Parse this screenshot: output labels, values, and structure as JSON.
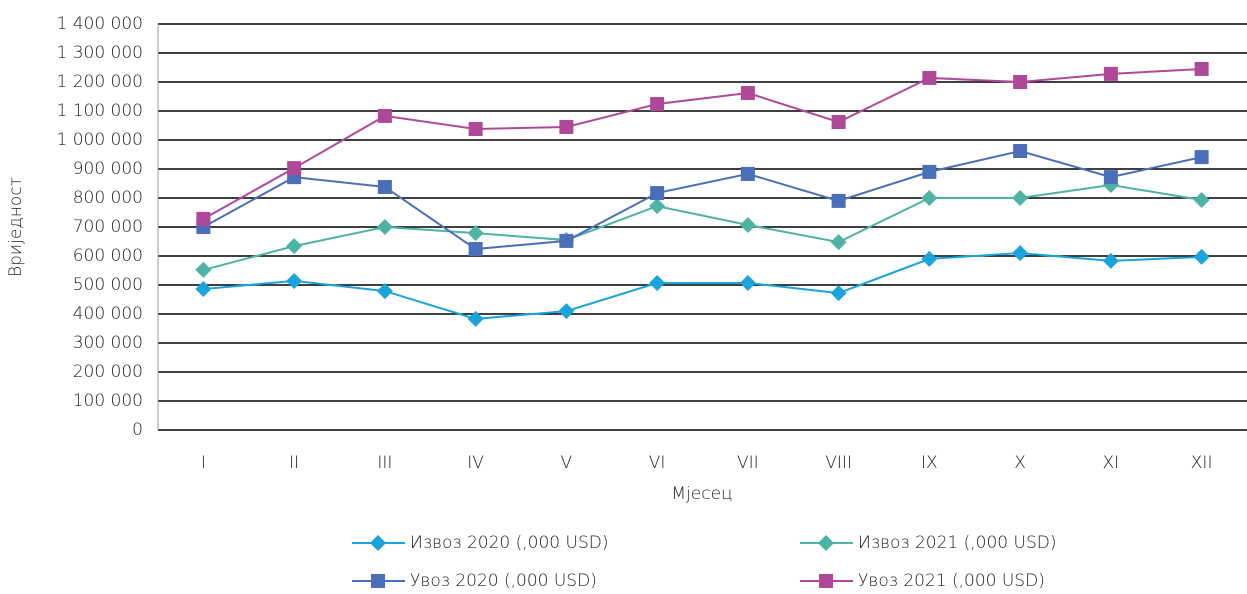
{
  "chart_data": {
    "type": "line",
    "y_label": "Вриједност",
    "x_label": "Мјесец",
    "categories": [
      "I",
      "II",
      "III",
      "IV",
      "V",
      "VI",
      "VII",
      "VIII",
      "IX",
      "X",
      "XI",
      "XII"
    ],
    "ylim": [
      0,
      1400000
    ],
    "yticks": [
      0,
      {
        "value": 100000,
        "label": "100 000"
      },
      {
        "value": 200000,
        "label": "200 000"
      },
      {
        "value": 300000,
        "label": "300 000"
      },
      {
        "value": 400000,
        "label": "400 000"
      },
      {
        "value": 500000,
        "label": "500 000"
      },
      {
        "value": 600000,
        "label": "600 000"
      },
      {
        "value": 700000,
        "label": "700 000"
      },
      {
        "value": 800000,
        "label": "800 000"
      },
      {
        "value": 900000,
        "label": "900 000"
      },
      {
        "value": 1000000,
        "label": "1 000 000"
      },
      {
        "value": 1100000,
        "label": "1 100 000"
      },
      {
        "value": 1200000,
        "label": "1 200 000"
      },
      {
        "value": 1300000,
        "label": "1 300 000"
      },
      {
        "value": 1400000,
        "label": "1 400 000"
      }
    ],
    "grid": true,
    "series": [
      {
        "name": "Извоз 2020 (,000 USD)",
        "color": "#1ba3dc",
        "marker": "diamond",
        "values": [
          486000,
          514000,
          479000,
          383000,
          410000,
          507000,
          507000,
          472000,
          590000,
          610000,
          583000,
          597000
        ]
      },
      {
        "name": "Извоз 2021 (,000 USD)",
        "color": "#4db3a5",
        "marker": "diamond",
        "values": [
          552000,
          634000,
          700000,
          679000,
          655000,
          772000,
          707000,
          648000,
          800000,
          800000,
          845000,
          793000
        ]
      },
      {
        "name": "Увоз 2020 (,000 USD)",
        "color": "#4a6fb8",
        "marker": "square",
        "values": [
          700000,
          872000,
          838000,
          624000,
          652000,
          817000,
          883000,
          790000,
          890000,
          962000,
          872000,
          941000
        ]
      },
      {
        "name": "Увоз 2021 (,000 USD)",
        "color": "#b0489a",
        "marker": "square",
        "values": [
          728000,
          903000,
          1083000,
          1038000,
          1045000,
          1124000,
          1162000,
          1062000,
          1214000,
          1200000,
          1228000,
          1245000
        ]
      }
    ]
  }
}
